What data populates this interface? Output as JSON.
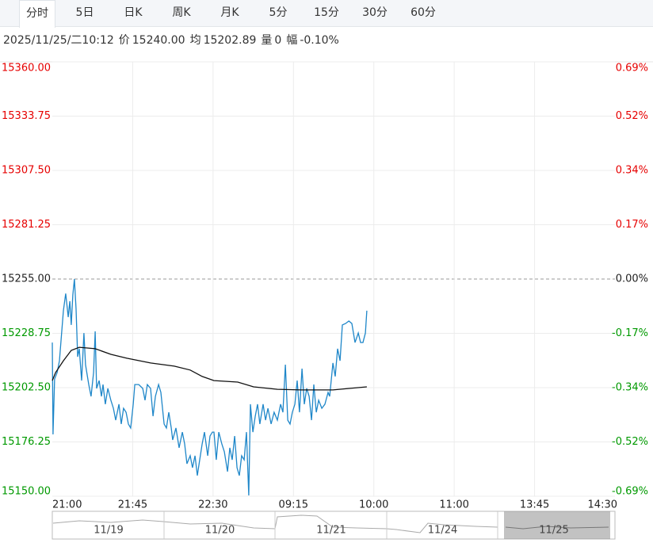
{
  "tabs": [
    "分时",
    "5日",
    "日K",
    "周K",
    "月K",
    "5分",
    "15分",
    "30分",
    "60分"
  ],
  "active_tab": "分时",
  "info": [
    "2025/11/25/二10:12",
    "价",
    "15240.00",
    "均",
    "15202.89",
    "量",
    "0",
    "幅",
    "-0.10%"
  ],
  "chart_data": {
    "type": "line",
    "series": [
      {
        "name": "价",
        "color": "#1f87c9",
        "x": [
          0,
          0.4,
          1.3,
          2.7,
          4.0,
          6.2,
          7.5,
          8.9,
          9.8,
          10.6,
          11.5,
          12.4,
          13.3,
          14.2,
          15.1,
          16.4,
          17.7,
          18.6,
          20.4,
          21.7,
          23.1,
          24.0,
          24.8,
          26.2,
          27.5,
          28.4,
          29.7,
          31.1,
          32.8,
          34.2,
          35.5,
          37.3,
          38.6,
          39.9,
          41.3,
          42.6,
          43.9,
          45.3,
          46.2,
          48.4,
          50.6,
          51.9,
          53.2,
          55.0,
          56.4,
          57.7,
          59.5,
          60.8,
          62.6,
          63.9,
          65.2,
          66.6,
          67.4,
          69.2,
          71.0,
          72.8,
          74.1,
          75.4,
          77.2,
          78.5,
          79.9,
          81.2,
          82.5,
          83.9,
          85.2,
          87.0,
          88.3,
          89.6,
          90.5,
          91.8,
          93.2,
          94.9,
          96.3,
          98.1,
          99.4,
          100.7,
          102.1,
          103.4,
          104.7,
          106.0,
          107.4,
          108.7,
          110.0,
          110.9,
          112.3,
          113.6,
          114.9,
          116.2,
          118.0,
          119.4,
          120.7,
          122.5,
          124.2,
          126.0,
          127.8,
          129.1,
          130.5,
          131.8,
          133.1,
          134.4,
          135.8,
          137.1,
          138.4,
          139.8,
          141.1,
          142.4,
          143.8,
          145.1,
          146.4,
          147.8,
          149.1,
          150.9,
          152.6,
          154.4,
          155.3,
          157.1,
          158.4,
          159.7,
          161.1,
          162.4,
          164.2,
          166.0,
          167.7,
          169.5,
          171.3,
          172.6,
          173.9,
          175.3,
          176.1
        ],
        "values": [
          15224.3,
          15179.9,
          15206.7,
          15209.8,
          15215.5,
          15239.7,
          15248.0,
          15236.6,
          15244.3,
          15232.8,
          15247.3,
          15255.0,
          15240.4,
          15217.4,
          15221.3,
          15205.9,
          15228.9,
          15213.6,
          15204.0,
          15198.3,
          15209.8,
          15229.7,
          15202.1,
          15205.9,
          15198.3,
          15204.0,
          15194.5,
          15202.1,
          15196.4,
          15192.5,
          15186.8,
          15194.5,
          15184.9,
          15192.5,
          15190.6,
          15184.9,
          15183.0,
          15194.5,
          15204.0,
          15204.0,
          15202.1,
          15196.4,
          15204.0,
          15202.1,
          15188.7,
          15198.3,
          15204.0,
          15200.2,
          15184.9,
          15183.0,
          15190.6,
          15183.0,
          15177.2,
          15183.0,
          15173.4,
          15181.0,
          15175.3,
          15165.7,
          15169.6,
          15163.8,
          15169.6,
          15160.0,
          15167.6,
          15175.3,
          15181.0,
          15169.6,
          15179.1,
          15181.0,
          15181.0,
          15167.6,
          15181.0,
          15175.3,
          15171.5,
          15161.9,
          15173.4,
          15167.6,
          15179.1,
          15163.8,
          15160.0,
          15169.6,
          15167.6,
          15181.0,
          15150.4,
          15194.5,
          15181.0,
          15188.7,
          15194.5,
          15184.9,
          15194.5,
          15186.8,
          15192.5,
          15184.9,
          15190.6,
          15186.8,
          15194.5,
          15190.6,
          15213.6,
          15186.8,
          15184.9,
          15190.6,
          15194.5,
          15205.9,
          15190.6,
          15211.7,
          15194.5,
          15202.1,
          15198.3,
          15186.8,
          15204.0,
          15190.6,
          15196.4,
          15192.5,
          15194.5,
          15200.2,
          15198.3,
          15214.4,
          15207.9,
          15221.3,
          15215.5,
          15232.8,
          15233.5,
          15234.7,
          15233.5,
          15224.3,
          15228.9,
          15224.3,
          15224.3,
          15228.9,
          15239.7
        ]
      },
      {
        "name": "均",
        "color": "#111111",
        "x": [
          0,
          1.8,
          6.2,
          10.6,
          15.1,
          24.0,
          32.8,
          41.7,
          55.0,
          68.3,
          77.2,
          83.9,
          90.5,
          103.8,
          112.7,
          126.0,
          139.3,
          157.1,
          176.1
        ],
        "values": [
          15205.9,
          15209.8,
          15215.5,
          15220.5,
          15222.0,
          15221.3,
          15218.6,
          15216.7,
          15214.4,
          15212.9,
          15211.0,
          15207.9,
          15205.9,
          15205.2,
          15202.9,
          15201.7,
          15201.4,
          15201.4,
          15202.9
        ]
      }
    ],
    "xlim": [
      0,
      315
    ],
    "xticks": [
      {
        "value": 0,
        "label": "21:00"
      },
      {
        "value": 45,
        "label": "21:45"
      },
      {
        "value": 90,
        "label": "22:30"
      },
      {
        "value": 135,
        "label": "09:15"
      },
      {
        "value": 180,
        "label": "10:00"
      },
      {
        "value": 225,
        "label": "11:00"
      },
      {
        "value": 270,
        "label": "13:45"
      },
      {
        "value": 315,
        "label": "14:30"
      }
    ],
    "ylim": [
      15150,
      15360
    ],
    "yticks": [
      {
        "value": 15150,
        "label": "15150.00"
      },
      {
        "value": 15176.25,
        "label": "15176.25"
      },
      {
        "value": 15202.5,
        "label": "15202.50"
      },
      {
        "value": 15228.75,
        "label": "15228.75"
      },
      {
        "value": 15255,
        "label": "15255.00"
      },
      {
        "value": 15281.25,
        "label": "15281.25"
      },
      {
        "value": 15307.5,
        "label": "15307.50"
      },
      {
        "value": 15333.75,
        "label": "15333.75"
      },
      {
        "value": 15360,
        "label": "15360.00"
      }
    ],
    "y2lim": [
      -0.688,
      0.688
    ],
    "y2ticks": [
      {
        "value": -0.688,
        "label": "-0.69%"
      },
      {
        "value": -0.516,
        "label": "-0.52%"
      },
      {
        "value": -0.344,
        "label": "-0.34%"
      },
      {
        "value": -0.172,
        "label": "-0.17%"
      },
      {
        "value": 0,
        "label": "0.00%"
      },
      {
        "value": 0.172,
        "label": "0.17%"
      },
      {
        "value": 0.344,
        "label": "0.34%"
      },
      {
        "value": 0.516,
        "label": "0.52%"
      },
      {
        "value": 0.688,
        "label": "0.69%"
      }
    ],
    "reference_line": 15255,
    "grid": true,
    "up_color": "#e60000",
    "down_color": "#009900",
    "navigator_dates": [
      "11/19",
      "11/20",
      "11/21",
      "11/24",
      "11/25"
    ]
  }
}
